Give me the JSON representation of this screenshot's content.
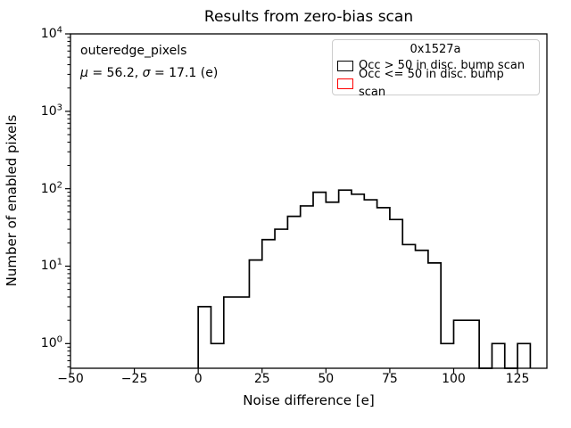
{
  "figure": {
    "background": "#ffffff",
    "title": "Results from zero-bias scan"
  },
  "annotation": {
    "dataset_label": "outeredge_pixels",
    "mu_symbol": "μ",
    "mu_value": " = 56.2, ",
    "sigma_symbol": "σ",
    "sigma_value": " = 17.1 (e)"
  },
  "legend": {
    "title": "0x1527a",
    "entries": [
      {
        "label": "Occ > 50 in disc. bump scan",
        "color": "#000000"
      },
      {
        "label": "Occ <= 50 in disc. bump scan",
        "color": "#ff0000"
      }
    ]
  },
  "chart_data": {
    "type": "bar",
    "subtype": "step-histogram",
    "title": "Results from zero-bias scan",
    "xlabel": "Noise difference [e]",
    "ylabel": "Number of enabled pixels",
    "yscale": "log",
    "xlim": [
      -50,
      136.5
    ],
    "ylim": [
      0.48,
      10000
    ],
    "grid": false,
    "legend_position": "upper right",
    "bin_start": 0,
    "bin_width": 5,
    "counts": [
      3,
      1,
      4,
      4,
      12,
      22,
      30,
      44,
      60,
      90,
      67,
      96,
      85,
      72,
      57,
      40,
      19,
      16,
      11,
      1,
      2,
      2,
      0,
      1,
      0,
      1
    ],
    "series_name": "Occ > 50 in disc. bump scan",
    "line_color": "#000000",
    "x_ticks": [
      -50,
      -25,
      0,
      25,
      50,
      75,
      100,
      125
    ],
    "x_tick_labels": [
      "−50",
      "−25",
      "0",
      "25",
      "50",
      "75",
      "100",
      "125"
    ],
    "y_tick_exponents": [
      0,
      1,
      2,
      3,
      4
    ]
  }
}
